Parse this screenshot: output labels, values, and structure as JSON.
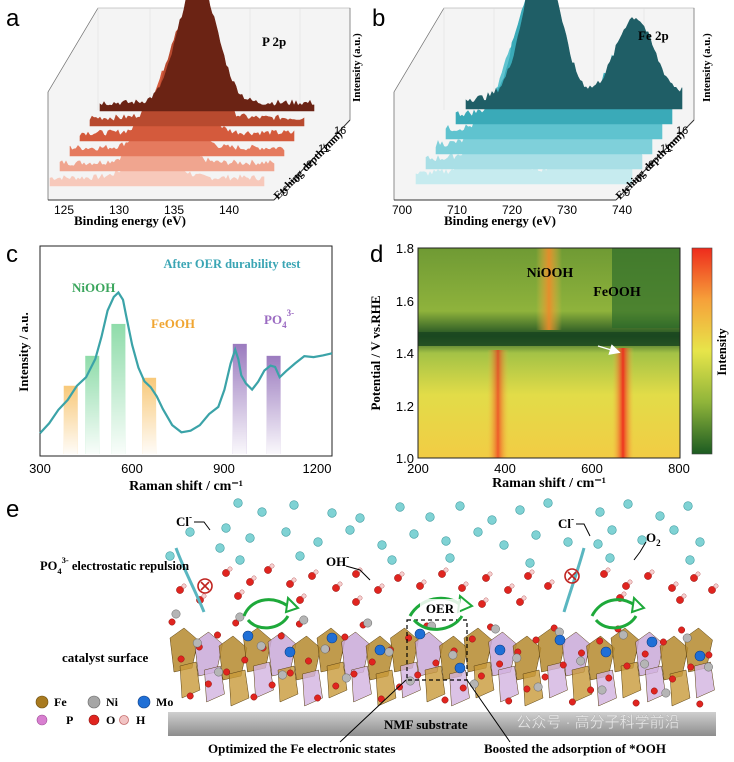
{
  "panel_letters": {
    "a": "a",
    "b": "b",
    "c": "c",
    "d": "d",
    "e": "e"
  },
  "panel_a": {
    "label": "P 2p",
    "xlabel": "Binding energy (eV)",
    "ylabel": "Intensity (a.u.)",
    "zlabel": "Etching depth (nm)",
    "xticks": [
      "125",
      "130",
      "135",
      "140"
    ],
    "zticks": [
      "0",
      "3",
      "6",
      "11",
      "16"
    ],
    "series_colors": [
      "#f7c9bb",
      "#f0a58f",
      "#e57a5e",
      "#d45a3c",
      "#b84a2f",
      "#6b2314"
    ]
  },
  "panel_b": {
    "label": "Fe 2p",
    "xlabel": "Binding energy (eV)",
    "ylabel": "Intensity (a.u.)",
    "zlabel": "Etching depth (nm)",
    "xticks": [
      "700",
      "710",
      "720",
      "730",
      "740"
    ],
    "zticks": [
      "0",
      "3",
      "6",
      "11",
      "16"
    ],
    "series_colors": [
      "#c6ebef",
      "#a9dfe6",
      "#7fd0da",
      "#5fc3cf",
      "#3aaab8",
      "#1f5e66"
    ]
  },
  "chart_data": [
    {
      "type": "line",
      "title": "After OER durability test",
      "xlabel": "Raman shift / cm⁻¹",
      "ylabel": "Intensity / a.u.",
      "xlim": [
        300,
        1250
      ],
      "xticks": [
        "300",
        "600",
        "900",
        "1200"
      ],
      "series": [
        {
          "x": [
            300,
            330,
            360,
            390,
            420,
            450,
            480,
            500,
            520,
            540,
            555,
            570,
            580,
            600,
            620,
            640,
            660,
            680,
            700,
            730,
            760,
            790,
            820,
            850,
            880,
            900,
            920,
            935,
            945,
            955,
            970,
            990,
            1010,
            1030,
            1050,
            1065,
            1080,
            1100,
            1130,
            1160,
            1190,
            1220,
            1250
          ],
          "y": [
            0.08,
            0.12,
            0.18,
            0.24,
            0.3,
            0.36,
            0.44,
            0.55,
            0.68,
            0.76,
            0.78,
            0.74,
            0.66,
            0.52,
            0.4,
            0.34,
            0.3,
            0.26,
            0.2,
            0.12,
            0.08,
            0.09,
            0.12,
            0.16,
            0.2,
            0.28,
            0.42,
            0.5,
            0.45,
            0.36,
            0.32,
            0.3,
            0.33,
            0.38,
            0.42,
            0.4,
            0.36,
            0.38,
            0.42,
            0.45,
            0.46,
            0.46,
            0.47
          ]
        }
      ],
      "bands": [
        {
          "label": "FeOOH",
          "center": 400,
          "color": "#f8c97a"
        },
        {
          "label": "NiOOH",
          "center": 470,
          "color": "#8fdcaa"
        },
        {
          "label": "NiOOH",
          "center": 555,
          "color": "#8fdcaa"
        },
        {
          "label": "FeOOH",
          "center": 655,
          "color": "#f8c97a"
        },
        {
          "label": "PO₄³⁻",
          "center": 950,
          "color": "#9b7bbf"
        },
        {
          "label": "PO₄³⁻",
          "center": 1060,
          "color": "#9b7bbf"
        }
      ],
      "annotations": {
        "niooh": "NiOOH",
        "feooh": "FeOOH",
        "po4": "PO",
        "po4_sub": "4",
        "po4_sup": "3-"
      }
    },
    {
      "type": "heatmap",
      "xlabel": "Raman shift / cm⁻¹",
      "ylabel": "Potential / V vs.RHE",
      "xlim": [
        200,
        800
      ],
      "ylim": [
        1.0,
        1.8
      ],
      "xticks": [
        "200",
        "400",
        "600",
        "800"
      ],
      "yticks": [
        "1.0",
        "1.2",
        "1.4",
        "1.6",
        "1.8"
      ],
      "colorbar_label": "Intensity",
      "annotations": {
        "niooh": "NiOOH",
        "feooh": "FeOOH"
      },
      "colors": {
        "low": "#1c5b22",
        "mid": "#e7e54a",
        "high": "#ee2b1c"
      }
    }
  ],
  "panel_e": {
    "cl_left": "Cl",
    "cl_right": "Cl",
    "cl_sup": "-",
    "oh": "OH",
    "oh_sup": "-",
    "o2": "O",
    "o2_sub": "2",
    "repulsion_prefix": "PO",
    "repulsion_sub": "4",
    "repulsion_sup": "3-",
    "repulsion_text": " electrostatic repulsion",
    "oer": "OER",
    "catalyst_surface": "catalyst surface",
    "substrate": "NMF substrate",
    "caption_left": "Optimized the Fe electronic states",
    "caption_right": "Boosted the adsorption of *OOH",
    "watermark": "公众号 · 高分子科学前沿",
    "legend": [
      {
        "label": "Fe",
        "color": "#a87a1f"
      },
      {
        "label": "Ni",
        "color": "#a6a6a6"
      },
      {
        "label": "Mo",
        "color": "#1f6fd6"
      },
      {
        "label": "P",
        "color": "#d87fd0"
      },
      {
        "label": "O",
        "color": "#e0241f"
      },
      {
        "label": "H",
        "color": "#f2c4c4"
      }
    ]
  }
}
